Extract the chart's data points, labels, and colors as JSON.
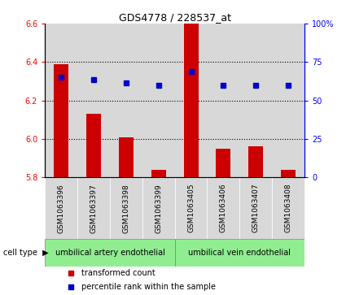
{
  "title": "GDS4778 / 228537_at",
  "samples": [
    "GSM1063396",
    "GSM1063397",
    "GSM1063398",
    "GSM1063399",
    "GSM1063405",
    "GSM1063406",
    "GSM1063407",
    "GSM1063408"
  ],
  "transformed_count": [
    6.39,
    6.13,
    6.01,
    5.84,
    6.6,
    5.95,
    5.96,
    5.84
  ],
  "percentile_left_axis": [
    6.32,
    6.31,
    6.29,
    6.28,
    6.35,
    6.28,
    6.28,
    6.28
  ],
  "ylim_left": [
    5.8,
    6.6
  ],
  "ylim_right": [
    0,
    100
  ],
  "yticks_left": [
    5.8,
    6.0,
    6.2,
    6.4,
    6.6
  ],
  "yticks_right": [
    0,
    25,
    50,
    75,
    100
  ],
  "bar_color": "#cc0000",
  "square_color": "#0000cc",
  "cell_types": [
    "umbilical artery endothelial",
    "umbilical vein endothelial"
  ],
  "cell_type_splits": [
    4,
    4
  ],
  "bg_color": "#d8d8d8",
  "cell_type_color": "#90ee90",
  "legend_bar_label": "transformed count",
  "legend_sq_label": "percentile rank within the sample",
  "grid_yticks": [
    6.0,
    6.2,
    6.4
  ]
}
